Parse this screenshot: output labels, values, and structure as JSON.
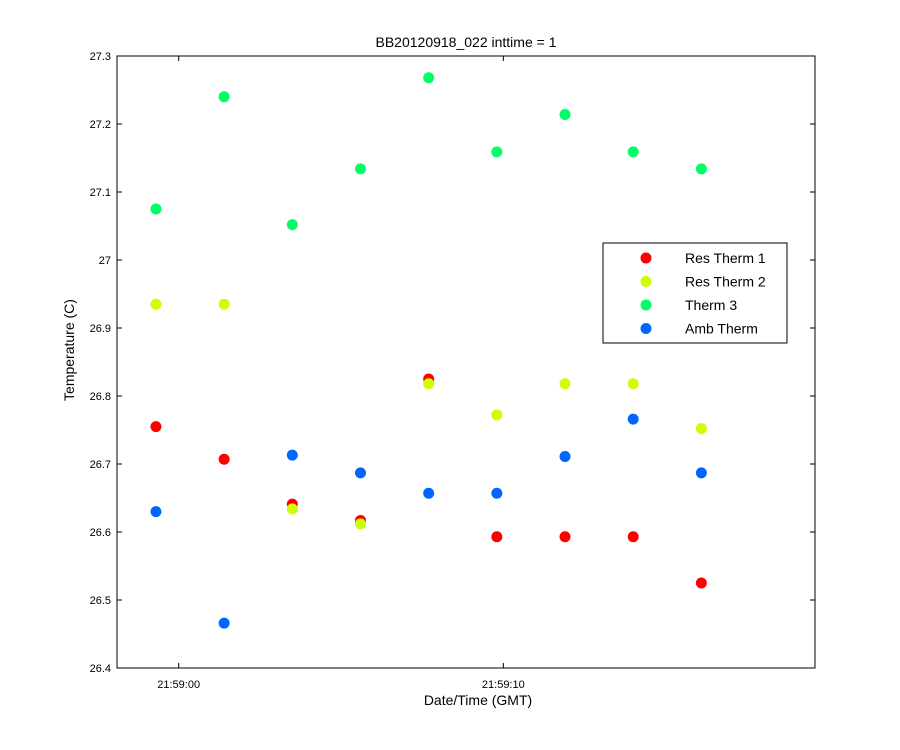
{
  "chart_data": {
    "type": "scatter",
    "title": "BB20120918_022 inttime = 1",
    "xlabel": "Date/Time (GMT)",
    "ylabel": "Temperature (C)",
    "x_unit": "seconds after 21:59:00",
    "xlim": [
      -1.9,
      19.6
    ],
    "ylim": [
      26.4,
      27.3
    ],
    "x_ticks": [
      {
        "value": 0,
        "label": "21:59:00"
      },
      {
        "value": 10,
        "label": "21:59:10"
      }
    ],
    "y_ticks": [
      "26.4",
      "26.5",
      "26.6",
      "26.7",
      "26.8",
      "26.9",
      "27",
      "27.1",
      "27.2",
      "27.3"
    ],
    "grid": false,
    "legend_position": "right",
    "x": [
      -0.7,
      1.4,
      3.5,
      5.6,
      7.7,
      9.8,
      11.9,
      14.0,
      16.1
    ],
    "series": [
      {
        "name": "Res Therm 1",
        "color": "#ff0000",
        "values": [
          26.755,
          26.707,
          26.641,
          26.617,
          26.825,
          26.593,
          26.593,
          26.593,
          26.525
        ]
      },
      {
        "name": "Res Therm 2",
        "color": "#ccff00",
        "values": [
          26.935,
          26.935,
          26.634,
          26.612,
          26.818,
          26.772,
          26.818,
          26.818,
          26.752
        ]
      },
      {
        "name": "Therm 3",
        "color": "#00ff66",
        "values": [
          27.075,
          27.24,
          27.052,
          27.134,
          27.268,
          27.159,
          27.214,
          27.159,
          27.134
        ]
      },
      {
        "name": "Amb Therm",
        "color": "#0066ff",
        "values": [
          26.63,
          26.466,
          26.713,
          26.687,
          26.657,
          26.657,
          26.711,
          26.766,
          26.687
        ]
      }
    ]
  }
}
